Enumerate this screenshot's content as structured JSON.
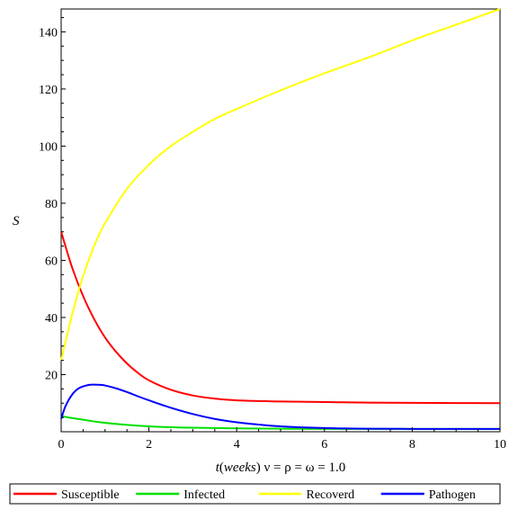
{
  "chart_data": {
    "type": "line",
    "title": "",
    "xlabel_var": "t",
    "xlabel_unit": "weeks",
    "xlabel_params": "ν = ρ = ω = 1.0",
    "ylabel": "S",
    "xlim": [
      0,
      10
    ],
    "ylim": [
      0,
      148
    ],
    "x_ticks": [
      0,
      2,
      4,
      6,
      8,
      10
    ],
    "y_ticks": [
      20,
      40,
      60,
      80,
      100,
      120,
      140
    ],
    "grid": false,
    "legend_position": "bottom",
    "series": [
      {
        "name": "Susceptible",
        "color": "#ff0000",
        "x": [
          0,
          0.25,
          0.5,
          0.75,
          1,
          1.25,
          1.5,
          1.75,
          2,
          2.5,
          3,
          3.5,
          4,
          5,
          6,
          7,
          8,
          9,
          10
        ],
        "y": [
          70,
          57.5,
          47.5,
          39.5,
          33,
          28,
          23.9,
          20.6,
          18,
          14.7,
          12.7,
          11.6,
          11,
          10.6,
          10.4,
          10.2,
          10.1,
          10.05,
          10
        ]
      },
      {
        "name": "Infected",
        "color": "#00e000",
        "x": [
          0,
          0.25,
          0.5,
          0.75,
          1,
          1.5,
          2,
          2.5,
          3,
          4,
          5,
          6,
          8,
          10
        ],
        "y": [
          5.5,
          4.8,
          4.2,
          3.6,
          3.1,
          2.4,
          1.9,
          1.6,
          1.4,
          1.2,
          1.05,
          1,
          1,
          1
        ]
      },
      {
        "name": "Recoverd",
        "color": "#ffff00",
        "x": [
          0,
          0.25,
          0.5,
          0.75,
          1,
          1.5,
          2,
          2.5,
          3,
          3.5,
          4,
          5,
          6,
          7,
          8,
          9,
          10
        ],
        "y": [
          25,
          41,
          54.5,
          65,
          73,
          85,
          93.5,
          100,
          105,
          109.5,
          113,
          119.5,
          125.5,
          131,
          137,
          142.5,
          148
        ]
      },
      {
        "name": "Pathogen",
        "color": "#0000ff",
        "x": [
          0,
          0.1,
          0.25,
          0.4,
          0.6,
          0.75,
          0.9,
          1,
          1.25,
          1.5,
          1.75,
          2,
          2.5,
          3,
          3.5,
          4,
          4.5,
          5,
          6,
          7,
          8,
          9,
          10
        ],
        "y": [
          4.5,
          9,
          13,
          15.2,
          16.3,
          16.5,
          16.4,
          16.2,
          15.2,
          13.9,
          12.4,
          11,
          8.4,
          6.2,
          4.5,
          3.3,
          2.5,
          1.9,
          1.3,
          1.05,
          1,
          1,
          1
        ]
      }
    ]
  }
}
